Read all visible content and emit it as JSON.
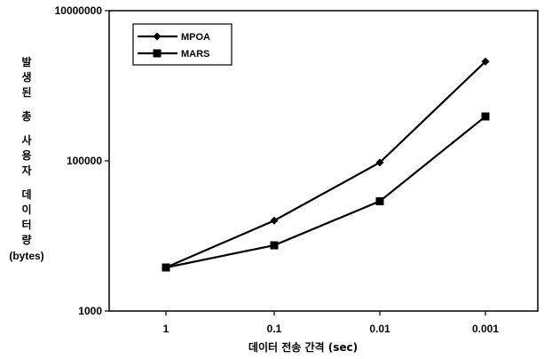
{
  "chart_data": {
    "type": "line",
    "categories": [
      "1",
      "0.1",
      "0.01",
      "0.001"
    ],
    "xlabel": "데이터 전송 간격 (sec)",
    "ylabel": "발생된 총 사용자 데이터량 (bytes)",
    "ylabel_lines": [
      "발",
      "생",
      "된",
      "",
      "총",
      "",
      "사",
      "용",
      "자",
      "",
      "데",
      "이",
      "터",
      "량"
    ],
    "ylabel_unit": "(bytes)",
    "yscale": "log",
    "ylim": [
      1000,
      10000000
    ],
    "yticks": [
      "1000",
      "100000",
      "10000000"
    ],
    "grid": false,
    "legend_position": "top-left",
    "series": [
      {
        "name": "MPOA",
        "marker": "diamond",
        "color": "#000000",
        "values": [
          3800,
          16000,
          95000,
          2100000
        ]
      },
      {
        "name": "MARS",
        "marker": "square",
        "color": "#000000",
        "values": [
          3800,
          7500,
          29000,
          390000
        ]
      }
    ]
  }
}
